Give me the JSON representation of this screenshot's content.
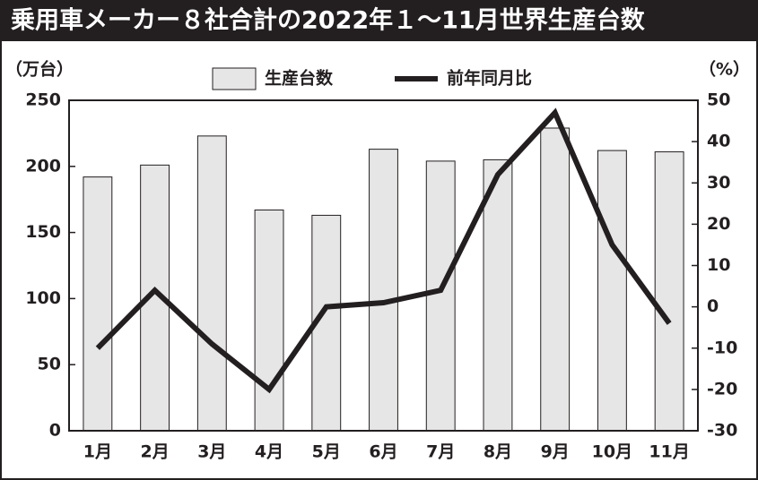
{
  "chart_data": {
    "type": "bar",
    "title": "乗用車メーカー８社合計の2022年１～11月世界生産台数",
    "y_label": "（万台）",
    "y2_label": "（%）",
    "categories": [
      "1月",
      "2月",
      "3月",
      "4月",
      "5月",
      "6月",
      "7月",
      "8月",
      "9月",
      "10月",
      "11月"
    ],
    "series": [
      {
        "name": "生産台数",
        "type": "bar",
        "color": "#e6e6e6",
        "axis": "y",
        "values": [
          192,
          201,
          223,
          167,
          163,
          213,
          204,
          205,
          229,
          212,
          211
        ]
      },
      {
        "name": "前年同月比",
        "type": "line",
        "color": "#231f20",
        "axis": "y2",
        "values": [
          -10,
          4,
          -9,
          -20,
          0,
          1,
          4,
          32,
          47,
          15,
          -4
        ]
      }
    ],
    "ylim": [
      0,
      250
    ],
    "yticks": [
      0,
      50,
      100,
      150,
      200,
      250
    ],
    "y2lim": [
      -30,
      50
    ],
    "y2ticks": [
      -30,
      -20,
      -10,
      0,
      10,
      20,
      30,
      40,
      50
    ],
    "grid": false
  }
}
